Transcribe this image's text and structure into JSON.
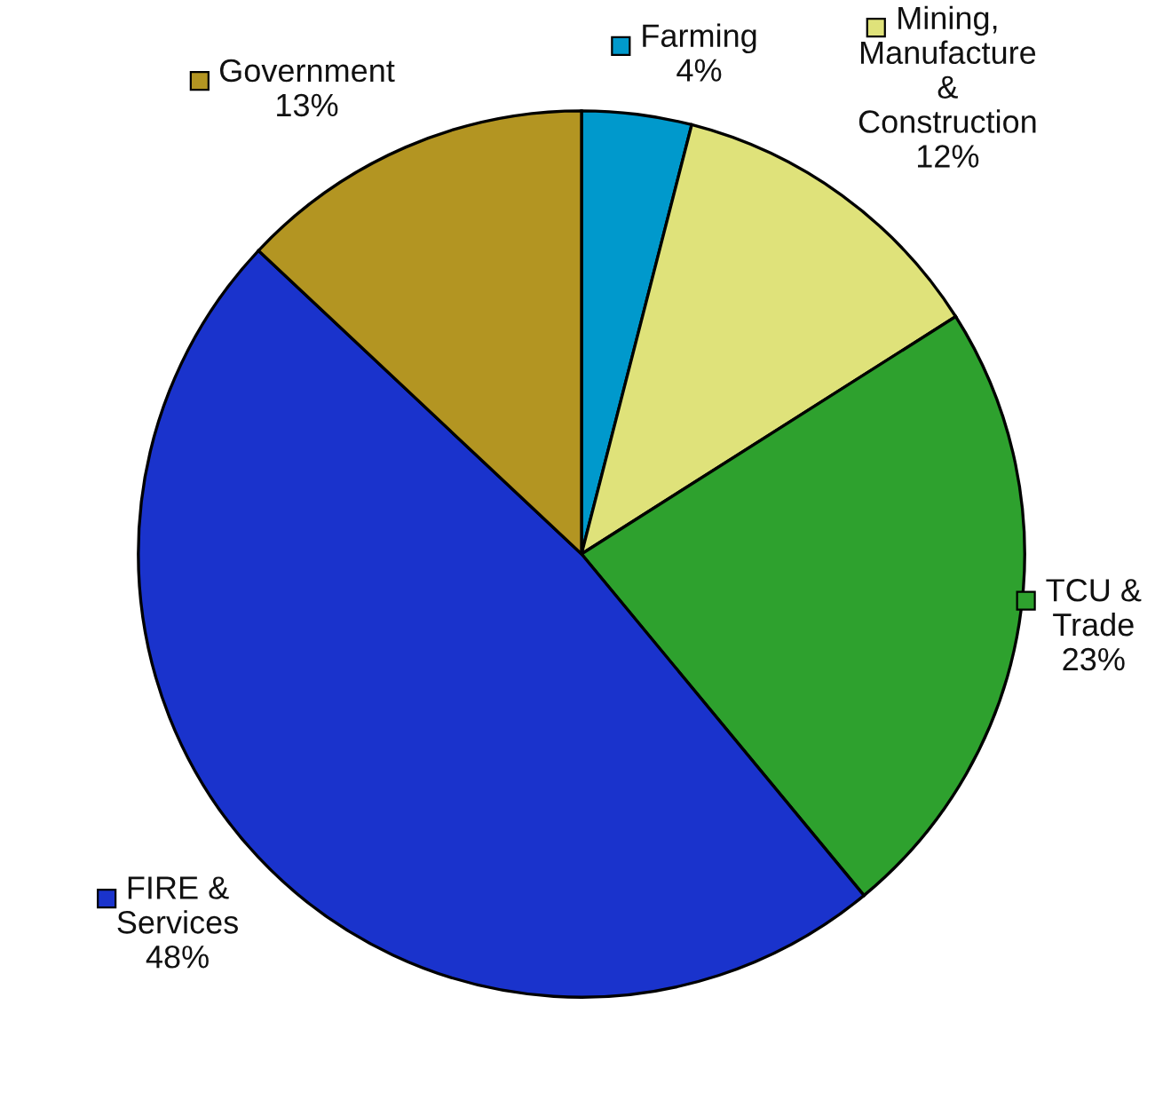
{
  "chart_data": {
    "type": "pie",
    "categories": [
      "Farming",
      "Mining,\nManufacture\n&\nConstruction",
      "TCU &\nTrade",
      "FIRE &\nServices",
      "Government"
    ],
    "values": [
      4,
      12,
      23,
      48,
      13
    ],
    "value_labels": [
      "4%",
      "12%",
      "23%",
      "48%",
      "13%"
    ],
    "colors": [
      "#0099cc",
      "#dfe27a",
      "#2ea12e",
      "#1a33cc",
      "#b39522"
    ],
    "legend": "right"
  }
}
